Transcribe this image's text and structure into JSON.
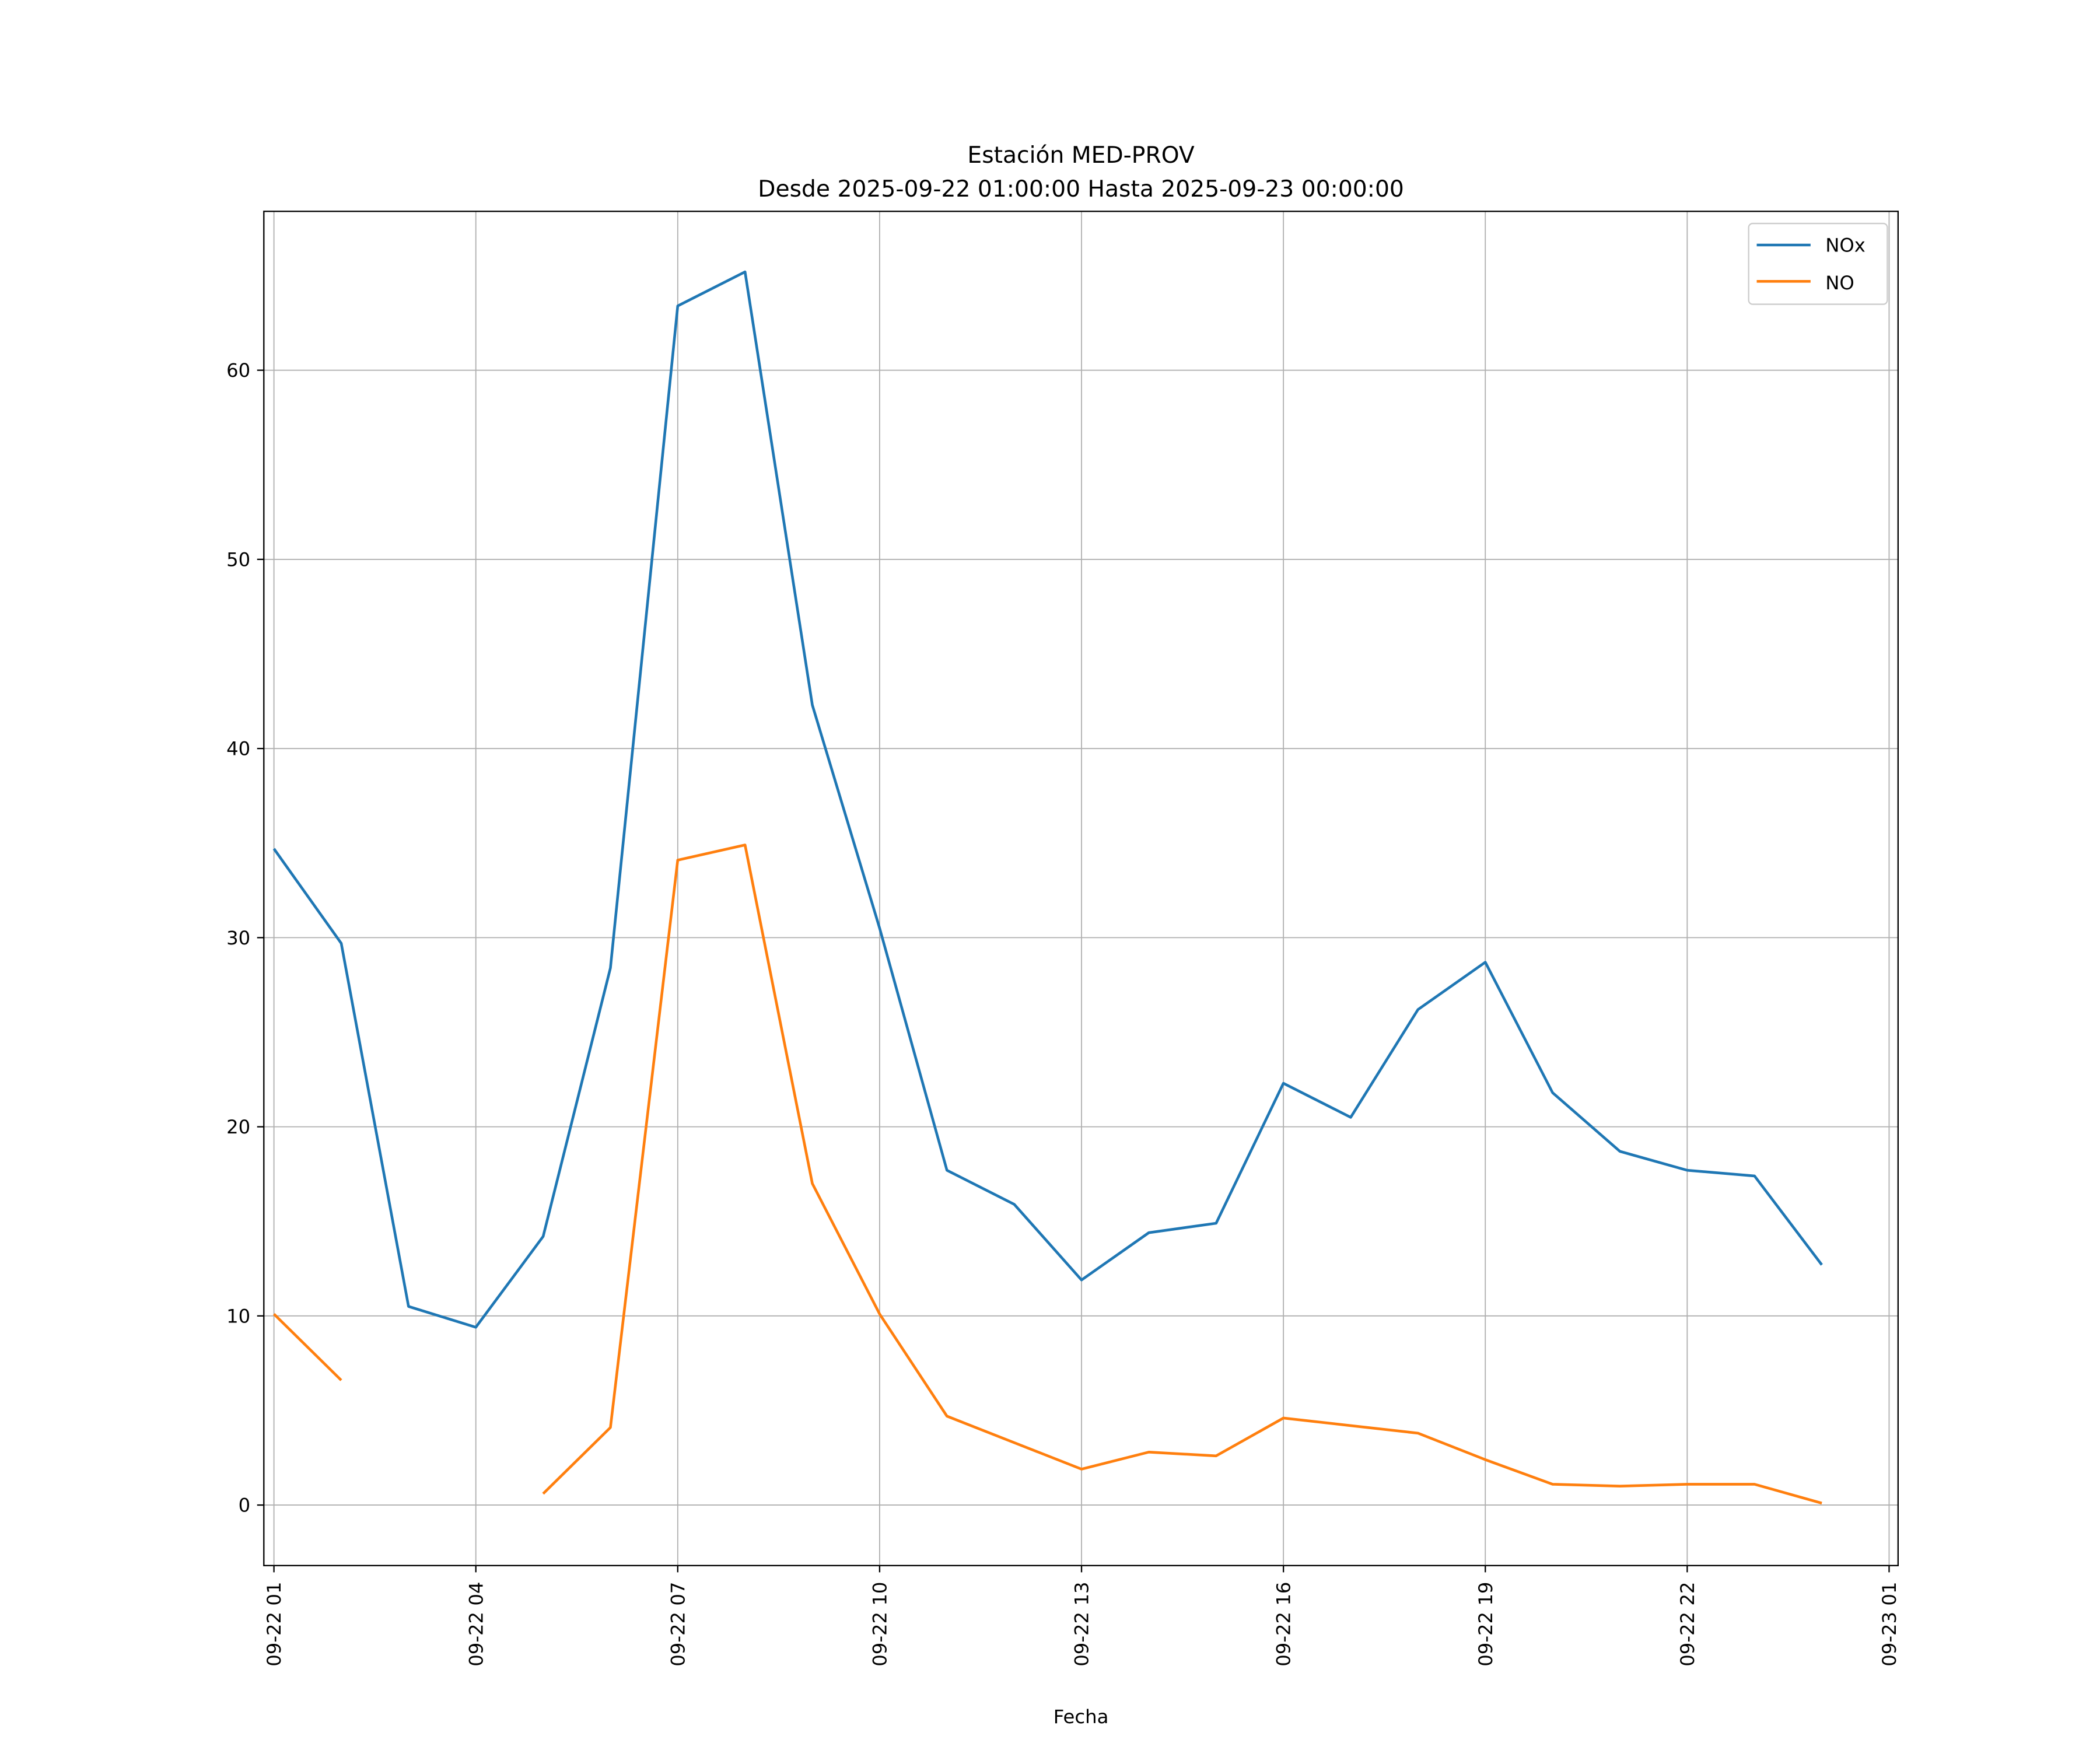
{
  "chart_data": {
    "type": "line",
    "title": "Estación MED-PROV",
    "subtitle": "Desde 2025-09-22 01:00:00 Hasta 2025-09-23 00:00:00",
    "xlabel": "Fecha",
    "ylabel": "",
    "x": [
      "2025-09-22 01:00",
      "2025-09-22 02:00",
      "2025-09-22 03:00",
      "2025-09-22 04:00",
      "2025-09-22 05:00",
      "2025-09-22 06:00",
      "2025-09-22 07:00",
      "2025-09-22 08:00",
      "2025-09-22 09:00",
      "2025-09-22 10:00",
      "2025-09-22 11:00",
      "2025-09-22 12:00",
      "2025-09-22 13:00",
      "2025-09-22 14:00",
      "2025-09-22 15:00",
      "2025-09-22 16:00",
      "2025-09-22 17:00",
      "2025-09-22 18:00",
      "2025-09-22 19:00",
      "2025-09-22 20:00",
      "2025-09-22 21:00",
      "2025-09-22 22:00",
      "2025-09-22 23:00",
      "2025-09-23 00:00"
    ],
    "series": [
      {
        "name": "NOx",
        "color": "#1f77b4",
        "values": [
          34.7,
          29.7,
          10.5,
          9.4,
          14.2,
          28.4,
          63.4,
          65.2,
          42.3,
          30.5,
          17.7,
          15.9,
          11.9,
          14.4,
          14.9,
          22.3,
          20.5,
          26.2,
          28.7,
          21.8,
          18.7,
          17.7,
          17.4,
          12.7
        ]
      },
      {
        "name": "NO",
        "color": "#ff7f0e",
        "values": [
          10.1,
          6.6,
          null,
          null,
          0.6,
          4.1,
          34.1,
          34.9,
          17.0,
          10.1,
          4.7,
          3.3,
          1.9,
          2.8,
          2.6,
          4.6,
          4.2,
          3.8,
          2.4,
          1.1,
          1.0,
          1.1,
          1.1,
          0.1
        ]
      }
    ],
    "xticks": [
      "09-22 01",
      "09-22 04",
      "09-22 07",
      "09-22 10",
      "09-22 13",
      "09-22 16",
      "09-22 19",
      "09-22 22",
      "09-23 01"
    ],
    "yticks": [
      "0",
      "10",
      "20",
      "30",
      "40",
      "50",
      "60"
    ],
    "ylim": [
      -3.2,
      68.4
    ],
    "xlim": [
      "2025-09-22 00:51",
      "2025-09-23 01:08"
    ],
    "grid": true,
    "legend_position": "top-right"
  }
}
